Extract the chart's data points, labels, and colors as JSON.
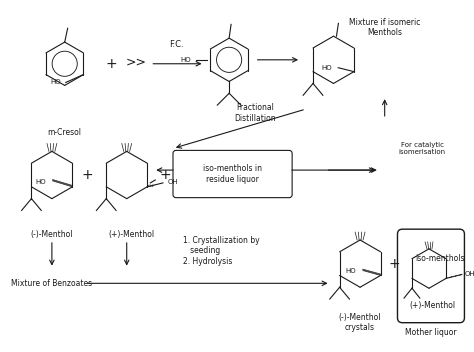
{
  "bg_color": "#ffffff",
  "line_color": "#1a1a1a",
  "fig_width": 4.74,
  "fig_height": 3.52,
  "dpi": 100,
  "xlim": [
    0,
    474
  ],
  "ylim": [
    0,
    352
  ],
  "labels": {
    "m_cresol": "m-Cresol",
    "fc": "F.C.",
    "frac_dist": "Fractional\nDistillation",
    "mix_isomeric": "Mixture if isomeric\nMenthols",
    "for_catalytic": "For catalytic\nisomerisation",
    "iso_menthols_box": "iso-menthols in\nresidue liquor",
    "neg_menthol": "(-)-Menthol",
    "pos_menthol": "(+)-Menthol",
    "mix_benzoates": "Mixture of Benzoates",
    "cryst_steps": "1. Crystallization by\n   seeding\n2. Hydrolysis",
    "neg_menthol_crystals": "(-)-Menthol\ncrystals",
    "pos_menthol_ml": "(+)-Menthol",
    "mother_liquor": "Mother liquor",
    "iso_menthols2": "iso-menthols"
  }
}
